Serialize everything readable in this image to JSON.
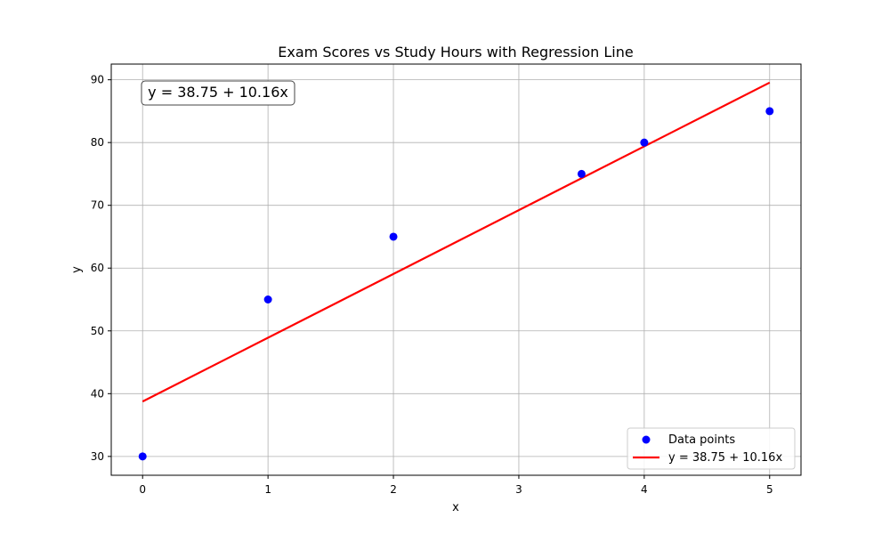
{
  "chart_data": {
    "type": "scatter",
    "title": "Exam Scores vs Study Hours with Regression Line",
    "xlabel": "x",
    "ylabel": "y",
    "xlim": [
      -0.25,
      5.25
    ],
    "ylim": [
      27,
      92.5
    ],
    "xticks": [
      0,
      1,
      2,
      3,
      4,
      5
    ],
    "yticks": [
      30,
      40,
      50,
      60,
      70,
      80,
      90
    ],
    "grid": true,
    "legend_position": "lower-right",
    "series": [
      {
        "name": "Data points",
        "kind": "scatter",
        "color": "#0000ff",
        "x": [
          0,
          1,
          2,
          3.5,
          4,
          5
        ],
        "y": [
          30,
          55,
          65,
          75,
          80,
          85
        ]
      },
      {
        "name": "y = 38.75 + 10.16x",
        "kind": "line",
        "color": "#ff0000",
        "intercept": 38.75,
        "slope": 10.16,
        "x": [
          0,
          5
        ],
        "y": [
          38.75,
          89.55
        ]
      }
    ],
    "annotation": {
      "text": "y = 38.75 + 10.16x",
      "position": "top-left"
    }
  }
}
